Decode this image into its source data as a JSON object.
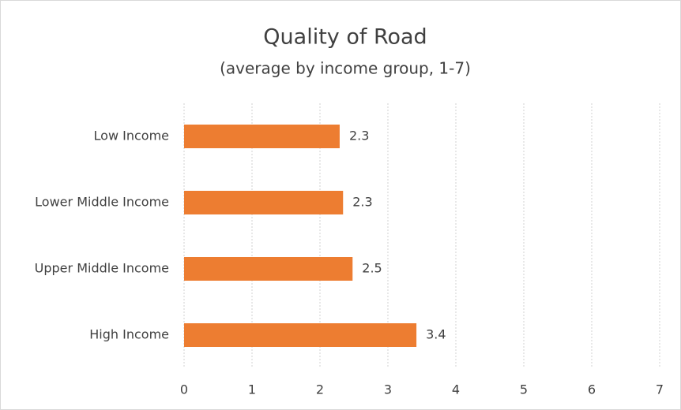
{
  "chart_data": {
    "type": "hbar",
    "title": "Quality of Road",
    "subtitle": "(average by income group, 1-7)",
    "categories": [
      "Low Income",
      "Lower Middle Income",
      "Upper Middle Income",
      "High Income"
    ],
    "values": [
      2.29,
      2.34,
      2.48,
      3.42
    ],
    "value_labels": [
      "2.3",
      "2.3",
      "2.5",
      "3.4"
    ],
    "color": "#ed7d31",
    "xlim": [
      0,
      7
    ],
    "xticks": [
      0,
      1,
      2,
      3,
      4,
      5,
      6,
      7
    ],
    "grid": true
  }
}
